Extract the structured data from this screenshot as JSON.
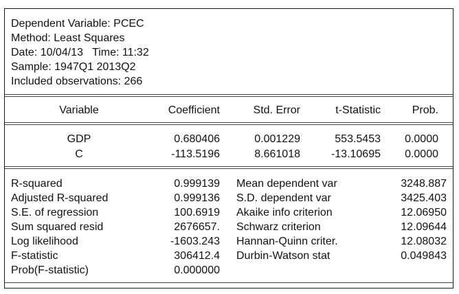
{
  "header": {
    "dependent_variable": "Dependent Variable: PCEC",
    "method": "Method: Least Squares",
    "date_time": "Date: 10/04/13   Time: 11:32",
    "sample": "Sample: 1947Q1 2013Q2",
    "observations": "Included observations: 266"
  },
  "coef_table": {
    "columns": [
      "Variable",
      "Coefficient",
      "Std. Error",
      "t-Statistic",
      "Prob."
    ],
    "rows": [
      [
        "GDP",
        "0.680406",
        "0.001229",
        "553.5453",
        "0.0000"
      ],
      [
        "C",
        "-113.5196",
        "8.661018",
        "-13.10695",
        "0.0000"
      ]
    ]
  },
  "stats": {
    "left": [
      [
        "R-squared",
        "0.999139"
      ],
      [
        "Adjusted R-squared",
        "0.999136"
      ],
      [
        "S.E. of regression",
        "100.6919"
      ],
      [
        "Sum squared resid",
        "2676657."
      ],
      [
        "Log likelihood",
        "-1603.243"
      ],
      [
        "F-statistic",
        "306412.4"
      ],
      [
        "Prob(F-statistic)",
        "0.000000"
      ]
    ],
    "right": [
      [
        "Mean dependent var",
        "3248.887"
      ],
      [
        "S.D. dependent var",
        "3425.403"
      ],
      [
        "Akaike info criterion",
        "12.06950"
      ],
      [
        "Schwarz criterion",
        "12.09644"
      ],
      [
        "Hannan-Quinn criter.",
        "12.08032"
      ],
      [
        "Durbin-Watson stat",
        "0.049843"
      ]
    ]
  }
}
